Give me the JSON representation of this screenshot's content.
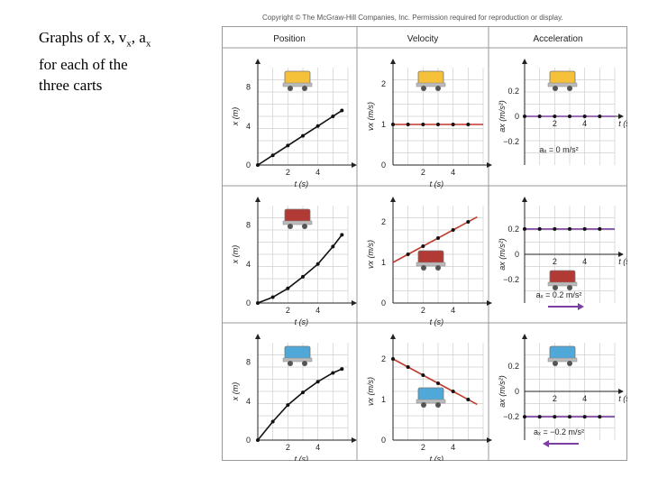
{
  "caption": {
    "line1": "Graphs of x, v",
    "sub1": "x",
    "mid": ", a",
    "sub2": "x",
    "line2": "for each of the",
    "line3": "three carts"
  },
  "copyright": "Copyright © The McGraw-Hill Companies, Inc. Permission required for reproduction or display.",
  "headers": [
    "Position",
    "Velocity",
    "Acceleration"
  ],
  "colors": {
    "yellow": "#f5c03a",
    "red": "#b23a35",
    "blue": "#4fa8d8",
    "velocity_line": "#c0392b",
    "accel_line": "#7a3fa0",
    "arrow": "#7a3fa0"
  },
  "chart_data": [
    {
      "type": "line",
      "panel": "position-row1",
      "xlabel": "t (s)",
      "ylabel": "x (m)",
      "xticks": [
        "2",
        "4"
      ],
      "yticks": [
        "0",
        "4",
        "8"
      ],
      "xlim": [
        0,
        6
      ],
      "ylim": [
        0,
        10
      ],
      "cart": "yellow",
      "series": [
        {
          "x": [
            0,
            1,
            2,
            3,
            4,
            5,
            5.6
          ],
          "y": [
            0,
            1.0,
            2.0,
            3.0,
            4.0,
            5.0,
            5.6
          ],
          "line": false
        }
      ]
    },
    {
      "type": "line",
      "panel": "velocity-row1",
      "xlabel": "t (s)",
      "ylabel": "vx (m/s)",
      "xticks": [
        "2",
        "4"
      ],
      "yticks": [
        "0",
        "1",
        "2"
      ],
      "xlim": [
        0,
        6
      ],
      "ylim": [
        0,
        2.4
      ],
      "cart": "yellow",
      "series": [
        {
          "x": [
            0,
            1,
            2,
            3,
            4,
            5
          ],
          "y": [
            1,
            1,
            1,
            1,
            1,
            1
          ],
          "line": true,
          "line_x": [
            0,
            6
          ]
        }
      ]
    },
    {
      "type": "line",
      "panel": "acceleration-row1",
      "xlabel": "t (s)",
      "ylabel": "ax (m/s²)",
      "xticks": [
        "2",
        "4"
      ],
      "yticks": [
        "0.2",
        "0",
        "−0.2"
      ],
      "xlim": [
        0,
        6
      ],
      "ylim": [
        -0.3,
        0.3
      ],
      "cart": "yellow",
      "label": "aₓ = 0 m/s²",
      "series": [
        {
          "x": [
            0,
            1,
            2,
            3,
            4,
            5
          ],
          "y": [
            0,
            0,
            0,
            0,
            0,
            0
          ],
          "line": true,
          "line_x": [
            0,
            6
          ]
        }
      ]
    },
    {
      "type": "line",
      "panel": "position-row2",
      "xlabel": "t (s)",
      "ylabel": "x (m)",
      "xticks": [
        "2",
        "4"
      ],
      "yticks": [
        "0",
        "4",
        "8"
      ],
      "xlim": [
        0,
        6
      ],
      "ylim": [
        0,
        10
      ],
      "cart": "red",
      "series": [
        {
          "x": [
            0,
            1,
            2,
            3,
            4,
            5,
            5.6
          ],
          "y": [
            0,
            0.6,
            1.5,
            2.7,
            4.0,
            5.8,
            7.0
          ],
          "line": false
        }
      ]
    },
    {
      "type": "line",
      "panel": "velocity-row2",
      "xlabel": "t (s)",
      "ylabel": "vx (m/s)",
      "xticks": [
        "2",
        "4"
      ],
      "yticks": [
        "0",
        "1",
        "2"
      ],
      "xlim": [
        0,
        6
      ],
      "ylim": [
        0,
        2.4
      ],
      "cart": "red",
      "series": [
        {
          "x": [
            1,
            2,
            3,
            4,
            5
          ],
          "y": [
            1.2,
            1.4,
            1.6,
            1.8,
            2.0
          ],
          "line": true,
          "line_x": [
            0,
            5.6
          ],
          "line_y": [
            1.0,
            2.12
          ]
        }
      ]
    },
    {
      "type": "line",
      "panel": "acceleration-row2",
      "xlabel": "t (s)",
      "ylabel": "ax (m/s²)",
      "xticks": [
        "2",
        "4"
      ],
      "yticks": [
        "0.2",
        "0",
        "−0.2"
      ],
      "xlim": [
        0,
        6
      ],
      "ylim": [
        -0.3,
        0.3
      ],
      "cart": "red",
      "label": "aₓ = 0.2 m/s²",
      "arrow": "right",
      "series": [
        {
          "x": [
            0,
            1,
            2,
            3,
            4,
            5
          ],
          "y": [
            0.2,
            0.2,
            0.2,
            0.2,
            0.2,
            0.2
          ],
          "line": true,
          "line_x": [
            0,
            6
          ]
        }
      ]
    },
    {
      "type": "line",
      "panel": "position-row3",
      "xlabel": "t (s)",
      "ylabel": "x (m)",
      "xticks": [
        "2",
        "4"
      ],
      "yticks": [
        "0",
        "4",
        "8"
      ],
      "xlim": [
        0,
        6
      ],
      "ylim": [
        0,
        10
      ],
      "cart": "blue",
      "series": [
        {
          "x": [
            0,
            1,
            2,
            3,
            4,
            5,
            5.6
          ],
          "y": [
            0,
            1.9,
            3.6,
            4.9,
            6.0,
            6.9,
            7.3
          ],
          "line": false
        }
      ]
    },
    {
      "type": "line",
      "panel": "velocity-row3",
      "xlabel": "t (s)",
      "ylabel": "vx (m/s)",
      "xticks": [
        "2",
        "4"
      ],
      "yticks": [
        "0",
        "1",
        "2"
      ],
      "xlim": [
        0,
        6
      ],
      "ylim": [
        0,
        2.4
      ],
      "cart": "blue",
      "series": [
        {
          "x": [
            0,
            1,
            2,
            3,
            4,
            5
          ],
          "y": [
            2.0,
            1.8,
            1.6,
            1.4,
            1.2,
            1.0
          ],
          "line": true,
          "line_x": [
            0,
            5.6
          ],
          "line_y": [
            2.0,
            0.88
          ]
        }
      ]
    },
    {
      "type": "line",
      "panel": "acceleration-row3",
      "xlabel": "t (s)",
      "ylabel": "ax (m/s²)",
      "xticks": [
        "2",
        "4"
      ],
      "yticks": [
        "0.2",
        "0",
        "−0.2"
      ],
      "xlim": [
        0,
        6
      ],
      "ylim": [
        -0.3,
        0.3
      ],
      "cart": "blue",
      "label": "aₓ = −0.2 m/s²",
      "arrow": "left",
      "series": [
        {
          "x": [
            0,
            1,
            2,
            3,
            4,
            5
          ],
          "y": [
            -0.2,
            -0.2,
            -0.2,
            -0.2,
            -0.2,
            -0.2
          ],
          "line": true,
          "line_x": [
            0,
            6
          ]
        }
      ]
    }
  ]
}
